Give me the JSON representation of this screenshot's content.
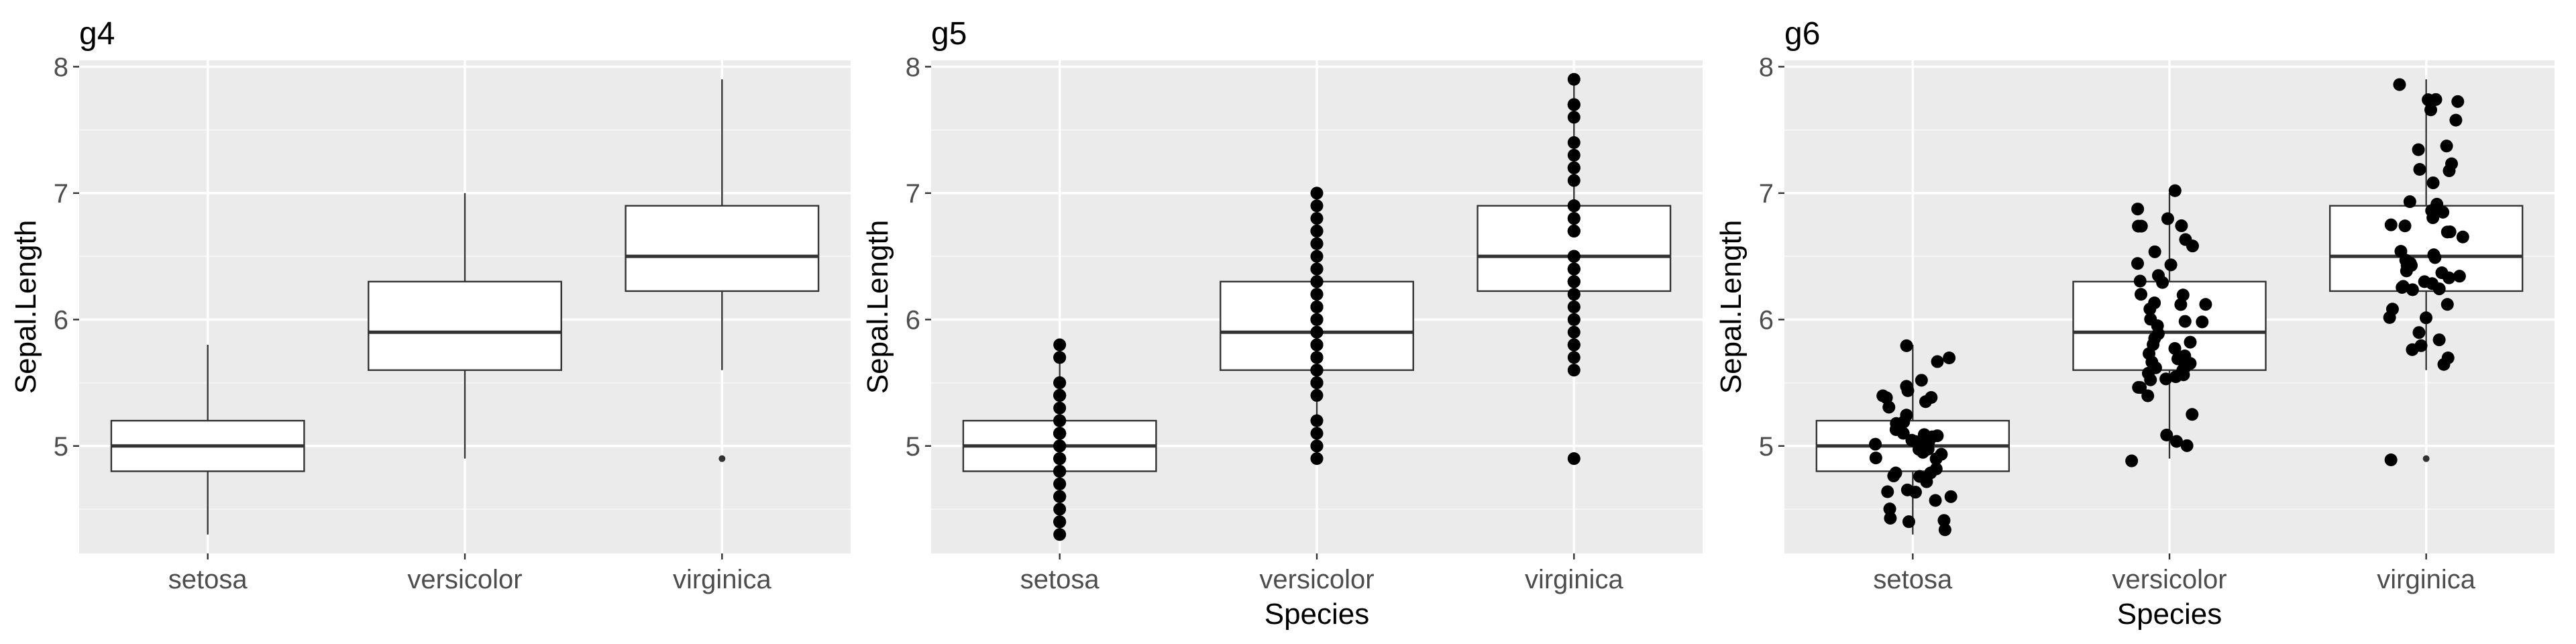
{
  "chart_data": [
    {
      "type": "box",
      "title": "g4",
      "xlabel": "",
      "ylabel": "Sepal.Length",
      "categories": [
        "setosa",
        "versicolor",
        "virginica"
      ],
      "ylim": [
        4.15,
        8.05
      ],
      "yticks": [
        5,
        6,
        7,
        8
      ],
      "grid": true,
      "boxes": [
        {
          "min": 4.3,
          "q1": 4.8,
          "median": 5.0,
          "q3": 5.2,
          "max": 5.8,
          "outliers": []
        },
        {
          "min": 4.9,
          "q1": 5.6,
          "median": 5.9,
          "q3": 6.3,
          "max": 7.0,
          "outliers": []
        },
        {
          "min": 5.6,
          "q1": 6.225,
          "median": 6.5,
          "q3": 6.9,
          "max": 7.9,
          "outliers": [
            4.9
          ]
        }
      ],
      "points": "none"
    },
    {
      "type": "box",
      "title": "g5",
      "xlabel": "Species",
      "ylabel": "Sepal.Length",
      "categories": [
        "setosa",
        "versicolor",
        "virginica"
      ],
      "ylim": [
        4.15,
        8.05
      ],
      "yticks": [
        5,
        6,
        7,
        8
      ],
      "grid": true,
      "boxes": [
        {
          "min": 4.3,
          "q1": 4.8,
          "median": 5.0,
          "q3": 5.2,
          "max": 5.8,
          "outliers": []
        },
        {
          "min": 4.9,
          "q1": 5.6,
          "median": 5.9,
          "q3": 6.3,
          "max": 7.0,
          "outliers": []
        },
        {
          "min": 5.6,
          "q1": 6.225,
          "median": 6.5,
          "q3": 6.9,
          "max": 7.9,
          "outliers": [
            4.9
          ]
        }
      ],
      "points": "overlay"
    },
    {
      "type": "box",
      "title": "g6",
      "xlabel": "Species",
      "ylabel": "Sepal.Length",
      "categories": [
        "setosa",
        "versicolor",
        "virginica"
      ],
      "ylim": [
        4.15,
        8.05
      ],
      "yticks": [
        5,
        6,
        7,
        8
      ],
      "grid": true,
      "boxes": [
        {
          "min": 4.3,
          "q1": 4.8,
          "median": 5.0,
          "q3": 5.2,
          "max": 5.8,
          "outliers": []
        },
        {
          "min": 4.9,
          "q1": 5.6,
          "median": 5.9,
          "q3": 6.3,
          "max": 7.0,
          "outliers": []
        },
        {
          "min": 5.6,
          "q1": 6.225,
          "median": 6.5,
          "q3": 6.9,
          "max": 7.9,
          "outliers": [
            4.9
          ]
        }
      ],
      "points": "jitter"
    }
  ],
  "samples": {
    "setosa": [
      5.1,
      4.9,
      4.7,
      4.6,
      5.0,
      5.4,
      4.6,
      5.0,
      4.4,
      4.9,
      5.4,
      4.8,
      4.8,
      4.3,
      5.8,
      5.7,
      5.4,
      5.1,
      5.7,
      5.1,
      5.4,
      5.1,
      4.6,
      5.1,
      4.8,
      5.0,
      5.0,
      5.2,
      5.2,
      4.7,
      4.8,
      5.4,
      5.2,
      5.5,
      4.9,
      5.0,
      5.5,
      4.9,
      4.4,
      5.1,
      5.0,
      4.5,
      4.4,
      5.0,
      5.1,
      4.8,
      5.1,
      4.6,
      5.3,
      5.0
    ],
    "versicolor": [
      7.0,
      6.4,
      6.9,
      5.5,
      6.5,
      5.7,
      6.3,
      4.9,
      6.6,
      5.2,
      5.0,
      5.9,
      6.0,
      6.1,
      5.6,
      6.7,
      5.6,
      5.8,
      6.2,
      5.6,
      5.9,
      6.1,
      6.3,
      6.1,
      6.4,
      6.6,
      6.8,
      6.7,
      6.0,
      5.7,
      5.5,
      5.5,
      5.8,
      6.0,
      5.4,
      6.0,
      6.7,
      6.3,
      5.6,
      5.5,
      5.5,
      6.1,
      5.8,
      5.0,
      5.6,
      5.7,
      5.7,
      6.2,
      5.1,
      5.7
    ],
    "virginica": [
      6.3,
      5.8,
      7.1,
      6.3,
      6.5,
      7.6,
      4.9,
      7.3,
      6.7,
      7.2,
      6.5,
      6.4,
      6.8,
      5.7,
      5.8,
      6.4,
      6.5,
      7.7,
      7.7,
      6.0,
      6.9,
      5.6,
      7.7,
      6.3,
      6.7,
      7.2,
      6.2,
      6.1,
      6.4,
      7.2,
      7.4,
      7.9,
      6.4,
      6.3,
      6.1,
      7.7,
      6.3,
      6.4,
      6.0,
      6.9,
      6.7,
      6.9,
      5.8,
      6.8,
      6.7,
      6.7,
      6.3,
      6.5,
      6.2,
      5.9
    ]
  },
  "colors": {
    "panel_bg": "#ebebeb",
    "grid_major": "#ffffff",
    "grid_minor": "#f5f5f5",
    "box_fill": "#ffffff",
    "line": "#333333",
    "point": "#000000",
    "axis_text": "#4d4d4d",
    "title_text": "#000000"
  }
}
